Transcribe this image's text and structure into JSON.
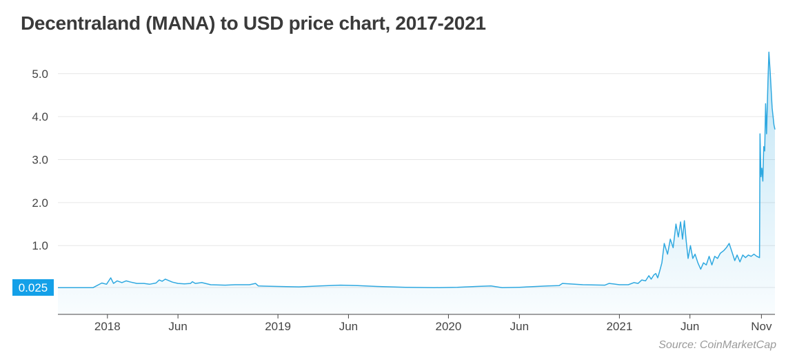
{
  "title": "Decentraland (MANA) to USD price chart, 2017-2021",
  "source": "Source: CoinMarketCap",
  "chart_data": {
    "type": "area",
    "title": "Decentraland (MANA) to USD price chart, 2017-2021",
    "xlabel": "",
    "ylabel": "",
    "ylim": [
      -0.6,
      5.75
    ],
    "xlim": [
      "2017-09-17",
      "2021-11-30"
    ],
    "grid": true,
    "y_ticks": [
      "5.0",
      "4.0",
      "3.0",
      "2.0",
      "1.0"
    ],
    "y_tick_values": [
      5,
      4,
      3,
      2,
      1
    ],
    "marker_label": "0.025",
    "marker_value": 0.025,
    "x_ticks": [
      {
        "label": "2018",
        "date": "2018-01-01"
      },
      {
        "label": "Jun",
        "date": "2018-06-01"
      },
      {
        "label": "2019",
        "date": "2019-01-01"
      },
      {
        "label": "Jun",
        "date": "2019-06-01"
      },
      {
        "label": "2020",
        "date": "2020-01-01"
      },
      {
        "label": "Jun",
        "date": "2020-06-01"
      },
      {
        "label": "2021",
        "date": "2021-01-01"
      },
      {
        "label": "Jun",
        "date": "2021-06-01"
      },
      {
        "label": "Nov",
        "date": "2021-11-01"
      }
    ],
    "colors": {
      "line": "#2ea8e0",
      "fill": "#2ea8e0",
      "marker": "#14a0e8",
      "grid": "#e6e6e6"
    },
    "series": [
      {
        "points": [
          [
            "2017-09-17",
            0.02
          ],
          [
            "2017-11-01",
            0.02
          ],
          [
            "2017-12-01",
            0.02
          ],
          [
            "2017-12-20",
            0.13
          ],
          [
            "2017-12-30",
            0.1
          ],
          [
            "2018-01-08",
            0.25
          ],
          [
            "2018-01-14",
            0.12
          ],
          [
            "2018-01-22",
            0.18
          ],
          [
            "2018-02-01",
            0.14
          ],
          [
            "2018-02-10",
            0.18
          ],
          [
            "2018-02-20",
            0.15
          ],
          [
            "2018-03-05",
            0.12
          ],
          [
            "2018-03-20",
            0.12
          ],
          [
            "2018-04-01",
            0.1
          ],
          [
            "2018-04-15",
            0.13
          ],
          [
            "2018-04-22",
            0.2
          ],
          [
            "2018-04-28",
            0.17
          ],
          [
            "2018-05-05",
            0.22
          ],
          [
            "2018-05-20",
            0.15
          ],
          [
            "2018-06-01",
            0.12
          ],
          [
            "2018-06-15",
            0.11
          ],
          [
            "2018-06-28",
            0.12
          ],
          [
            "2018-07-02",
            0.16
          ],
          [
            "2018-07-08",
            0.12
          ],
          [
            "2018-07-22",
            0.14
          ],
          [
            "2018-08-10",
            0.09
          ],
          [
            "2018-09-10",
            0.08
          ],
          [
            "2018-10-01",
            0.09
          ],
          [
            "2018-11-01",
            0.09
          ],
          [
            "2018-11-14",
            0.12
          ],
          [
            "2018-11-20",
            0.06
          ],
          [
            "2019-01-01",
            0.05
          ],
          [
            "2019-02-15",
            0.04
          ],
          [
            "2019-04-01",
            0.06
          ],
          [
            "2019-05-15",
            0.08
          ],
          [
            "2019-06-20",
            0.07
          ],
          [
            "2019-08-01",
            0.05
          ],
          [
            "2019-10-01",
            0.03
          ],
          [
            "2019-12-01",
            0.02
          ],
          [
            "2020-01-20",
            0.03
          ],
          [
            "2020-03-01",
            0.05
          ],
          [
            "2020-04-01",
            0.06
          ],
          [
            "2020-04-25",
            0.02
          ],
          [
            "2020-06-01",
            0.03
          ],
          [
            "2020-08-01",
            0.06
          ],
          [
            "2020-08-25",
            0.07
          ],
          [
            "2020-09-01",
            0.12
          ],
          [
            "2020-10-15",
            0.09
          ],
          [
            "2020-12-01",
            0.08
          ],
          [
            "2020-12-10",
            0.12
          ],
          [
            "2021-01-01",
            0.09
          ],
          [
            "2021-01-20",
            0.09
          ],
          [
            "2021-02-01",
            0.14
          ],
          [
            "2021-02-10",
            0.12
          ],
          [
            "2021-02-18",
            0.2
          ],
          [
            "2021-02-26",
            0.18
          ],
          [
            "2021-03-05",
            0.3
          ],
          [
            "2021-03-10",
            0.22
          ],
          [
            "2021-03-16",
            0.32
          ],
          [
            "2021-03-20",
            0.35
          ],
          [
            "2021-03-24",
            0.25
          ],
          [
            "2021-03-28",
            0.4
          ],
          [
            "2021-04-02",
            0.6
          ],
          [
            "2021-04-07",
            1.05
          ],
          [
            "2021-04-14",
            0.8
          ],
          [
            "2021-04-20",
            1.15
          ],
          [
            "2021-04-26",
            0.95
          ],
          [
            "2021-05-02",
            1.5
          ],
          [
            "2021-05-07",
            1.2
          ],
          [
            "2021-05-12",
            1.55
          ],
          [
            "2021-05-16",
            1.15
          ],
          [
            "2021-05-20",
            1.58
          ],
          [
            "2021-05-24",
            1.1
          ],
          [
            "2021-05-28",
            0.7
          ],
          [
            "2021-06-02",
            1.0
          ],
          [
            "2021-06-07",
            0.7
          ],
          [
            "2021-06-12",
            0.8
          ],
          [
            "2021-06-18",
            0.6
          ],
          [
            "2021-06-24",
            0.45
          ],
          [
            "2021-06-30",
            0.6
          ],
          [
            "2021-07-06",
            0.55
          ],
          [
            "2021-07-12",
            0.75
          ],
          [
            "2021-07-18",
            0.55
          ],
          [
            "2021-07-24",
            0.75
          ],
          [
            "2021-07-30",
            0.7
          ],
          [
            "2021-08-05",
            0.82
          ],
          [
            "2021-08-12",
            0.88
          ],
          [
            "2021-08-18",
            0.95
          ],
          [
            "2021-08-24",
            1.05
          ],
          [
            "2021-08-30",
            0.85
          ],
          [
            "2021-09-05",
            0.65
          ],
          [
            "2021-09-10",
            0.78
          ],
          [
            "2021-09-16",
            0.62
          ],
          [
            "2021-09-22",
            0.78
          ],
          [
            "2021-09-28",
            0.72
          ],
          [
            "2021-10-04",
            0.78
          ],
          [
            "2021-10-10",
            0.75
          ],
          [
            "2021-10-16",
            0.8
          ],
          [
            "2021-10-22",
            0.75
          ],
          [
            "2021-10-28",
            0.72
          ],
          [
            "2021-10-29",
            3.6
          ],
          [
            "2021-10-31",
            2.6
          ],
          [
            "2021-11-02",
            2.8
          ],
          [
            "2021-11-04",
            2.5
          ],
          [
            "2021-11-06",
            3.3
          ],
          [
            "2021-11-08",
            3.2
          ],
          [
            "2021-11-10",
            4.3
          ],
          [
            "2021-11-12",
            3.6
          ],
          [
            "2021-11-15",
            4.8
          ],
          [
            "2021-11-17",
            5.5
          ],
          [
            "2021-11-20",
            5.0
          ],
          [
            "2021-11-24",
            4.2
          ],
          [
            "2021-11-28",
            3.8
          ],
          [
            "2021-11-30",
            3.7
          ]
        ]
      }
    ]
  }
}
